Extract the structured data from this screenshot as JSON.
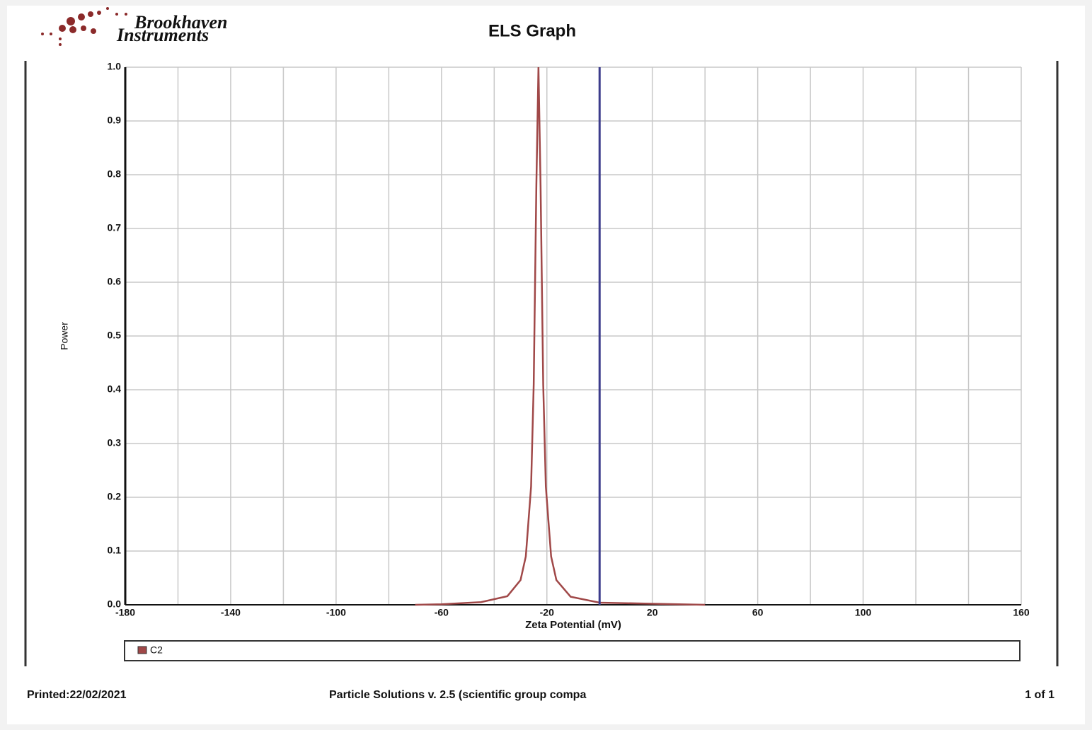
{
  "header": {
    "logo": [
      "Brookhaven",
      "Instruments"
    ]
  },
  "chart_data": {
    "type": "line",
    "title": "ELS Graph",
    "x_label": "Zeta Potential (mV)",
    "y_label": "Power",
    "x": [
      -70,
      -60,
      -45,
      -35,
      -30,
      -28,
      -26,
      -25,
      -24,
      -23.2,
      -22.4,
      -21.4,
      -20.4,
      -18.4,
      -16.4,
      -11,
      0,
      20,
      40
    ],
    "series": [
      {
        "name": "C2",
        "color": "#a04848",
        "values": [
          0,
          0.001,
          0.005,
          0.016,
          0.046,
          0.09,
          0.22,
          0.41,
          0.78,
          1.0,
          0.78,
          0.41,
          0.22,
          0.09,
          0.046,
          0.015,
          0.004,
          0.002,
          0
        ]
      }
    ],
    "reference_line": {
      "x": 0,
      "color": "#3c3c8c"
    },
    "xlim": [
      -180,
      160
    ],
    "xticks": [
      -180,
      -140,
      -100,
      -60,
      -20,
      20,
      60,
      100,
      160
    ],
    "x_gridlines": [
      -160,
      -120,
      -80,
      -40,
      0,
      40,
      80,
      120,
      140
    ],
    "ylim": [
      0,
      1
    ],
    "yticks": [
      {
        "value": 0,
        "label": "0.0"
      },
      0.1,
      0.2,
      0.3,
      0.4,
      0.5,
      0.6,
      0.7,
      0.8,
      0.9,
      {
        "value": 1,
        "label": "1.0"
      }
    ],
    "grid": true
  },
  "footer": {
    "printed": "Printed:22/02/2021",
    "software": "Particle Solutions v. 2.5 (scientific group compa",
    "page": "1 of 1"
  }
}
